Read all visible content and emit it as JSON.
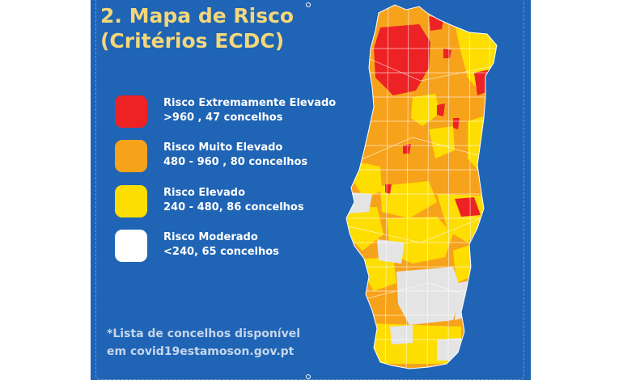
{
  "title": {
    "line1": "2. Mapa de Risco",
    "line2": "(Critérios ECDC)"
  },
  "legend": [
    {
      "label": "Risco Extremamente Elevado",
      "range": ">960 , 47 concelhos",
      "color": "#ed2224"
    },
    {
      "label": "Risco Muito Elevado",
      "range": "480 - 960 , 80 concelhos",
      "color": "#f7a21b"
    },
    {
      "label": "Risco Elevado",
      "range": "240 - 480, 86 concelhos",
      "color": "#fedd00"
    },
    {
      "label": "Risco Moderado",
      "range": "<240, 65 concelhos",
      "color": "#ffffff"
    }
  ],
  "footnote": {
    "line1": "*Lista de concelhos disponível",
    "line2": "em covid19estamoson.gov.pt"
  },
  "map": {
    "region": "Portugal continental",
    "fill_moderado": "#e4e4e4"
  }
}
